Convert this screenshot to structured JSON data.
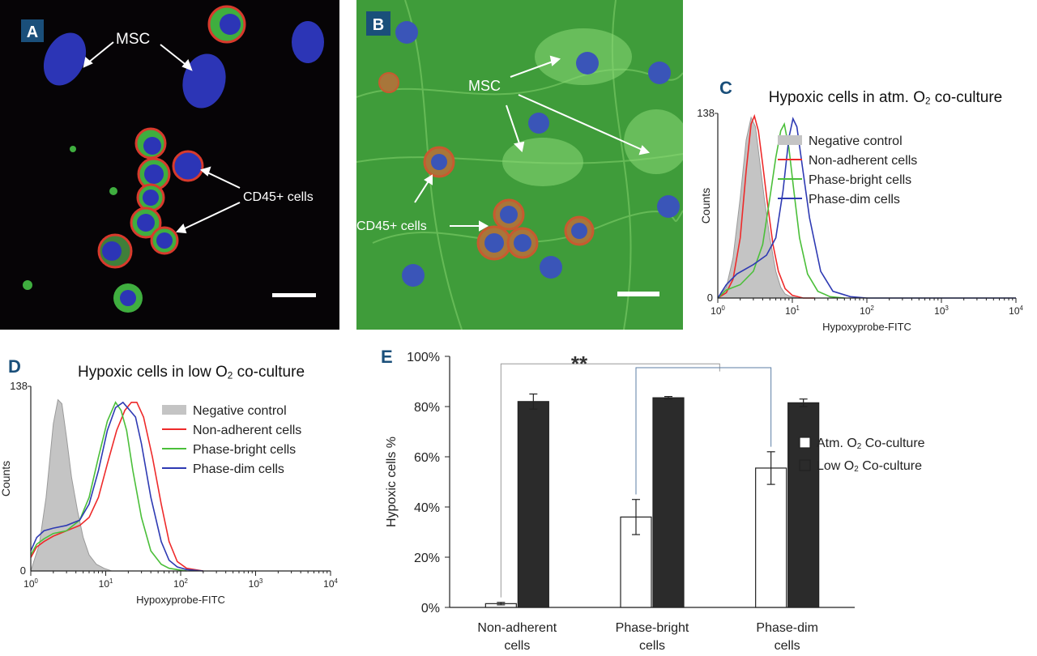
{
  "panels": {
    "a": {
      "letter": "A",
      "msc_label": "MSC",
      "cd45_label": "CD45+ cells",
      "background": "#060406",
      "nucleus_color": "#2c35b6",
      "membrane_color": "#d83a2c",
      "cytoplasm_color": "#3fae3f"
    },
    "b": {
      "letter": "B",
      "msc_label": "MSC",
      "cd45_label": "CD45+ cells",
      "background": "#3f9c3a",
      "nucleus_color": "#3a55b8"
    }
  },
  "legend_c": [
    "Negative control",
    "Non-adherent cells",
    "Phase-bright cells",
    "Phase-dim cells"
  ],
  "legend_d": [
    "Negative control",
    "Non-adherent cells",
    "Phase-bright cells",
    "Phase-dim cells"
  ],
  "legend_e": [
    "Atm. O2 Co-culture",
    "Low O2 Co-culture"
  ],
  "colors": {
    "panel_letter_bg": "#1a4f7a",
    "negative": "#c4c4c4",
    "nonadherent": "#ee2a2a",
    "phase_bright": "#4bbf3a",
    "phase_dim": "#2e3ab3",
    "atm_bar": "#ffffff",
    "low_bar": "#2b2b2b",
    "bracket": "#5b7ea6"
  },
  "chart_data": [
    {
      "id": "C",
      "type": "line",
      "panel_letter": "C",
      "title": "Hypoxic cells in atm. O2 co-culture",
      "xlabel": "Hypoxyprobe-FITC",
      "ylabel": "Counts",
      "xscale": "log",
      "xlim": [
        1,
        10000
      ],
      "ylim": [
        0,
        138
      ],
      "yticks": [
        "0",
        "138"
      ],
      "xticks": [
        "10^0",
        "10^1",
        "10^2",
        "10^3",
        "10^4"
      ],
      "legend_position": "right",
      "series": [
        {
          "name": "Negative control",
          "style": "filled",
          "x": [
            1,
            1.3,
            1.6,
            2.0,
            2.4,
            2.8,
            3.2,
            3.6,
            4.2,
            5.0,
            6.0,
            7.0,
            8.0,
            9.5,
            12,
            20
          ],
          "y": [
            0,
            8,
            30,
            75,
            118,
            135,
            128,
            105,
            75,
            45,
            20,
            8,
            3,
            1,
            0,
            0
          ]
        },
        {
          "name": "Non-adherent cells",
          "x": [
            1,
            1.3,
            1.6,
            2.0,
            2.4,
            2.8,
            3.1,
            3.5,
            4.0,
            4.6,
            5.5,
            6.5,
            8.0,
            10,
            14,
            20
          ],
          "y": [
            0,
            4,
            14,
            45,
            95,
            130,
            136,
            125,
            100,
            72,
            40,
            20,
            7,
            2,
            0,
            0
          ]
        },
        {
          "name": "Phase-bright cells",
          "x": [
            1,
            1.3,
            2.0,
            3.0,
            4.0,
            5.0,
            6.0,
            7.0,
            7.8,
            9.0,
            10.5,
            12.5,
            16,
            22,
            32,
            50
          ],
          "y": [
            0,
            6,
            10,
            20,
            40,
            75,
            105,
            125,
            130,
            112,
            80,
            45,
            18,
            5,
            1,
            0
          ]
        },
        {
          "name": "Phase-dim cells",
          "x": [
            1,
            1.3,
            1.8,
            3.0,
            4.5,
            6.0,
            7.5,
            9.0,
            10.2,
            11.5,
            13.5,
            17,
            24,
            35,
            60,
            100,
            200,
            10000
          ],
          "y": [
            0,
            10,
            18,
            25,
            32,
            45,
            80,
            120,
            134,
            128,
            100,
            60,
            20,
            5,
            1,
            0,
            0,
            0
          ]
        }
      ]
    },
    {
      "id": "D",
      "type": "line",
      "panel_letter": "D",
      "title": "Hypoxic cells in low O2 co-culture",
      "xlabel": "Hypoxyprobe-FITC",
      "ylabel": "Counts",
      "xscale": "log",
      "xlim": [
        1,
        10000
      ],
      "ylim": [
        0,
        138
      ],
      "yticks": [
        "0",
        "138"
      ],
      "xticks": [
        "10^0",
        "10^1",
        "10^2",
        "10^3",
        "10^4"
      ],
      "legend_position": "right",
      "series": [
        {
          "name": "Negative control",
          "style": "filled",
          "x": [
            1,
            1.3,
            1.6,
            2.0,
            2.3,
            2.6,
            3.0,
            3.5,
            4.2,
            5.0,
            6.0,
            7.5,
            9.5,
            12,
            20
          ],
          "y": [
            0,
            20,
            55,
            110,
            128,
            125,
            100,
            70,
            45,
            25,
            12,
            5,
            2,
            0,
            0
          ]
        },
        {
          "name": "Non-adherent cells",
          "x": [
            1,
            1.2,
            1.5,
            2.0,
            3.0,
            4.5,
            6.0,
            8.0,
            10.5,
            14,
            18,
            22,
            26,
            32,
            42,
            55,
            70,
            90,
            120,
            200
          ],
          "y": [
            10,
            18,
            22,
            26,
            30,
            34,
            40,
            55,
            80,
            105,
            120,
            126,
            126,
            115,
            85,
            50,
            22,
            7,
            2,
            0
          ]
        },
        {
          "name": "Phase-bright cells",
          "x": [
            1,
            1.2,
            1.5,
            2.0,
            3.0,
            4.5,
            6.0,
            8.0,
            10.5,
            13.5,
            16,
            19,
            23,
            30,
            40,
            55,
            70,
            90,
            120
          ],
          "y": [
            12,
            20,
            24,
            28,
            30,
            38,
            55,
            85,
            112,
            126,
            120,
            105,
            75,
            40,
            15,
            5,
            2,
            1,
            0
          ]
        },
        {
          "name": "Phase-dim cells",
          "x": [
            1,
            1.2,
            1.5,
            2.0,
            3.0,
            4.5,
            6.0,
            8.0,
            10.5,
            13.5,
            17,
            21,
            25,
            30,
            40,
            55,
            70,
            90,
            120,
            200
          ],
          "y": [
            15,
            25,
            30,
            32,
            34,
            38,
            50,
            75,
            105,
            122,
            126,
            120,
            115,
            95,
            55,
            22,
            8,
            3,
            1,
            0
          ]
        }
      ]
    },
    {
      "id": "E",
      "type": "bar",
      "panel_letter": "E",
      "title": "",
      "xlabel": "",
      "ylabel": "Hypoxic cells %",
      "ylim": [
        0,
        100
      ],
      "yticks": [
        "0%",
        "20%",
        "40%",
        "60%",
        "80%",
        "100%"
      ],
      "categories": [
        "Non-adherent\ncells",
        "Phase-bright\ncells",
        "Phase-dim\ncells"
      ],
      "category_lines": [
        [
          "Non-adherent",
          "cells"
        ],
        [
          "Phase-bright",
          "cells"
        ],
        [
          "Phase-dim",
          "cells"
        ]
      ],
      "series": [
        {
          "name": "Atm. O2 Co-culture",
          "values": [
            1.5,
            36,
            55.5
          ],
          "errors": [
            0.5,
            7,
            6.5
          ]
        },
        {
          "name": "Low O2 Co-culture",
          "values": [
            82,
            83.5,
            81.5
          ],
          "errors": [
            3,
            0.5,
            1.5
          ]
        }
      ],
      "significance": "**",
      "legend_position": "right"
    }
  ]
}
